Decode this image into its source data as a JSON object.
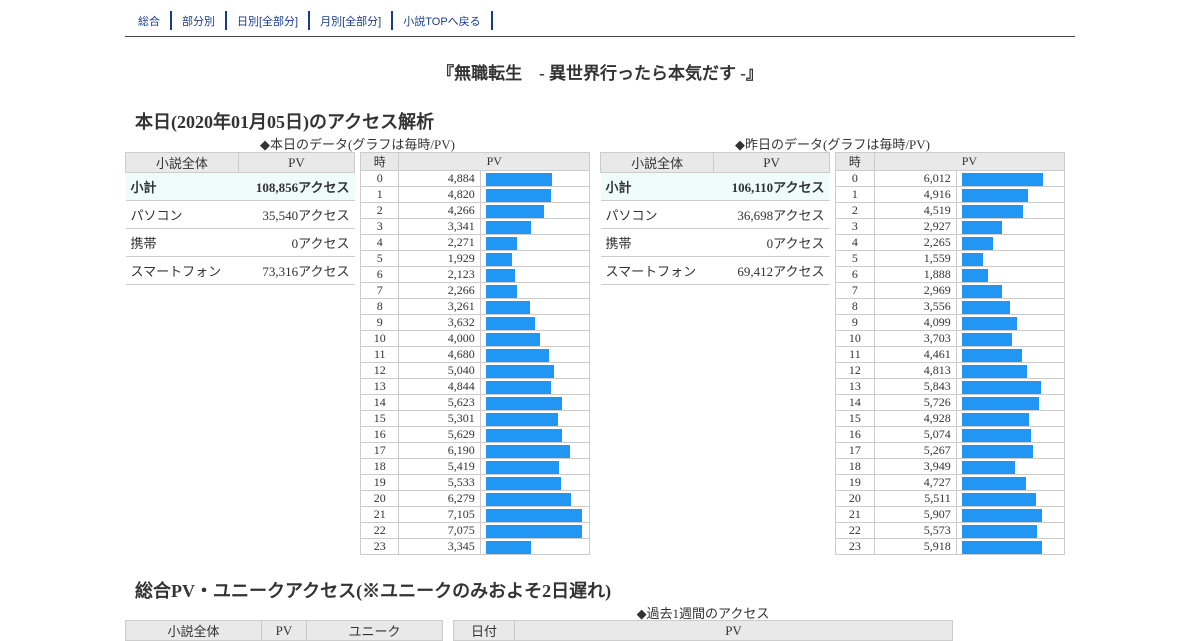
{
  "nav": [
    "総合",
    "部分別",
    "日別[全部分]",
    "月別[全部分]",
    "小説TOPへ戻る"
  ],
  "novel_title": "『無職転生　- 異世界行ったら本気だす -』",
  "today_section_title": "本日(2020年01月05日)のアクセス解析",
  "today_caption": "◆本日のデータ(グラフは毎時/PV)",
  "yesterday_caption": "◆昨日のデータ(グラフは毎時/PV)",
  "summary_headers": [
    "小説全体",
    "PV"
  ],
  "hourly_headers": [
    "時",
    "PV"
  ],
  "today_summary": [
    {
      "label": "小計",
      "value": "108,856アクセス"
    },
    {
      "label": "パソコン",
      "value": "35,540アクセス"
    },
    {
      "label": "携帯",
      "value": "0アクセス"
    },
    {
      "label": "スマートフォン",
      "value": "73,316アクセス"
    }
  ],
  "yesterday_summary": [
    {
      "label": "小計",
      "value": "106,110アクセス"
    },
    {
      "label": "パソコン",
      "value": "36,698アクセス"
    },
    {
      "label": "携帯",
      "value": "0アクセス"
    },
    {
      "label": "スマートフォン",
      "value": "69,412アクセス"
    }
  ],
  "today_hourly": [
    {
      "hour": "0",
      "pv": "4,884",
      "value": 4884
    },
    {
      "hour": "1",
      "pv": "4,820",
      "value": 4820
    },
    {
      "hour": "2",
      "pv": "4,266",
      "value": 4266
    },
    {
      "hour": "3",
      "pv": "3,341",
      "value": 3341
    },
    {
      "hour": "4",
      "pv": "2,271",
      "value": 2271
    },
    {
      "hour": "5",
      "pv": "1,929",
      "value": 1929
    },
    {
      "hour": "6",
      "pv": "2,123",
      "value": 2123
    },
    {
      "hour": "7",
      "pv": "2,266",
      "value": 2266
    },
    {
      "hour": "8",
      "pv": "3,261",
      "value": 3261
    },
    {
      "hour": "9",
      "pv": "3,632",
      "value": 3632
    },
    {
      "hour": "10",
      "pv": "4,000",
      "value": 4000
    },
    {
      "hour": "11",
      "pv": "4,680",
      "value": 4680
    },
    {
      "hour": "12",
      "pv": "5,040",
      "value": 5040
    },
    {
      "hour": "13",
      "pv": "4,844",
      "value": 4844
    },
    {
      "hour": "14",
      "pv": "5,623",
      "value": 5623
    },
    {
      "hour": "15",
      "pv": "5,301",
      "value": 5301
    },
    {
      "hour": "16",
      "pv": "5,629",
      "value": 5629
    },
    {
      "hour": "17",
      "pv": "6,190",
      "value": 6190
    },
    {
      "hour": "18",
      "pv": "5,419",
      "value": 5419
    },
    {
      "hour": "19",
      "pv": "5,533",
      "value": 5533
    },
    {
      "hour": "20",
      "pv": "6,279",
      "value": 6279
    },
    {
      "hour": "21",
      "pv": "7,105",
      "value": 7105
    },
    {
      "hour": "22",
      "pv": "7,075",
      "value": 7075
    },
    {
      "hour": "23",
      "pv": "3,345",
      "value": 3345
    }
  ],
  "yesterday_hourly": [
    {
      "hour": "0",
      "pv": "6,012",
      "value": 6012
    },
    {
      "hour": "1",
      "pv": "4,916",
      "value": 4916
    },
    {
      "hour": "2",
      "pv": "4,519",
      "value": 4519
    },
    {
      "hour": "3",
      "pv": "2,927",
      "value": 2927
    },
    {
      "hour": "4",
      "pv": "2,265",
      "value": 2265
    },
    {
      "hour": "5",
      "pv": "1,559",
      "value": 1559
    },
    {
      "hour": "6",
      "pv": "1,888",
      "value": 1888
    },
    {
      "hour": "7",
      "pv": "2,969",
      "value": 2969
    },
    {
      "hour": "8",
      "pv": "3,556",
      "value": 3556
    },
    {
      "hour": "9",
      "pv": "4,099",
      "value": 4099
    },
    {
      "hour": "10",
      "pv": "3,703",
      "value": 3703
    },
    {
      "hour": "11",
      "pv": "4,461",
      "value": 4461
    },
    {
      "hour": "12",
      "pv": "4,813",
      "value": 4813
    },
    {
      "hour": "13",
      "pv": "5,843",
      "value": 5843
    },
    {
      "hour": "14",
      "pv": "5,726",
      "value": 5726
    },
    {
      "hour": "15",
      "pv": "4,928",
      "value": 4928
    },
    {
      "hour": "16",
      "pv": "5,074",
      "value": 5074
    },
    {
      "hour": "17",
      "pv": "5,267",
      "value": 5267
    },
    {
      "hour": "18",
      "pv": "3,949",
      "value": 3949
    },
    {
      "hour": "19",
      "pv": "4,727",
      "value": 4727
    },
    {
      "hour": "20",
      "pv": "5,511",
      "value": 5511
    },
    {
      "hour": "21",
      "pv": "5,907",
      "value": 5907
    },
    {
      "hour": "22",
      "pv": "5,573",
      "value": 5573
    },
    {
      "hour": "23",
      "pv": "5,918",
      "value": 5918
    }
  ],
  "total_section_title": "総合PV・ユニークアクセス(※ユニークのみおよそ2日遅れ)",
  "week_caption": "◆過去1週間のアクセス",
  "total_headers": [
    "小説全体",
    "PV",
    "ユニーク"
  ],
  "week_headers": [
    "日付",
    "PV"
  ],
  "colors": {
    "bar": "#2196f3",
    "nav": "#1a3b8c",
    "subtotal_bg": "#eefcfc",
    "header_bg": "#e9e9e9"
  }
}
